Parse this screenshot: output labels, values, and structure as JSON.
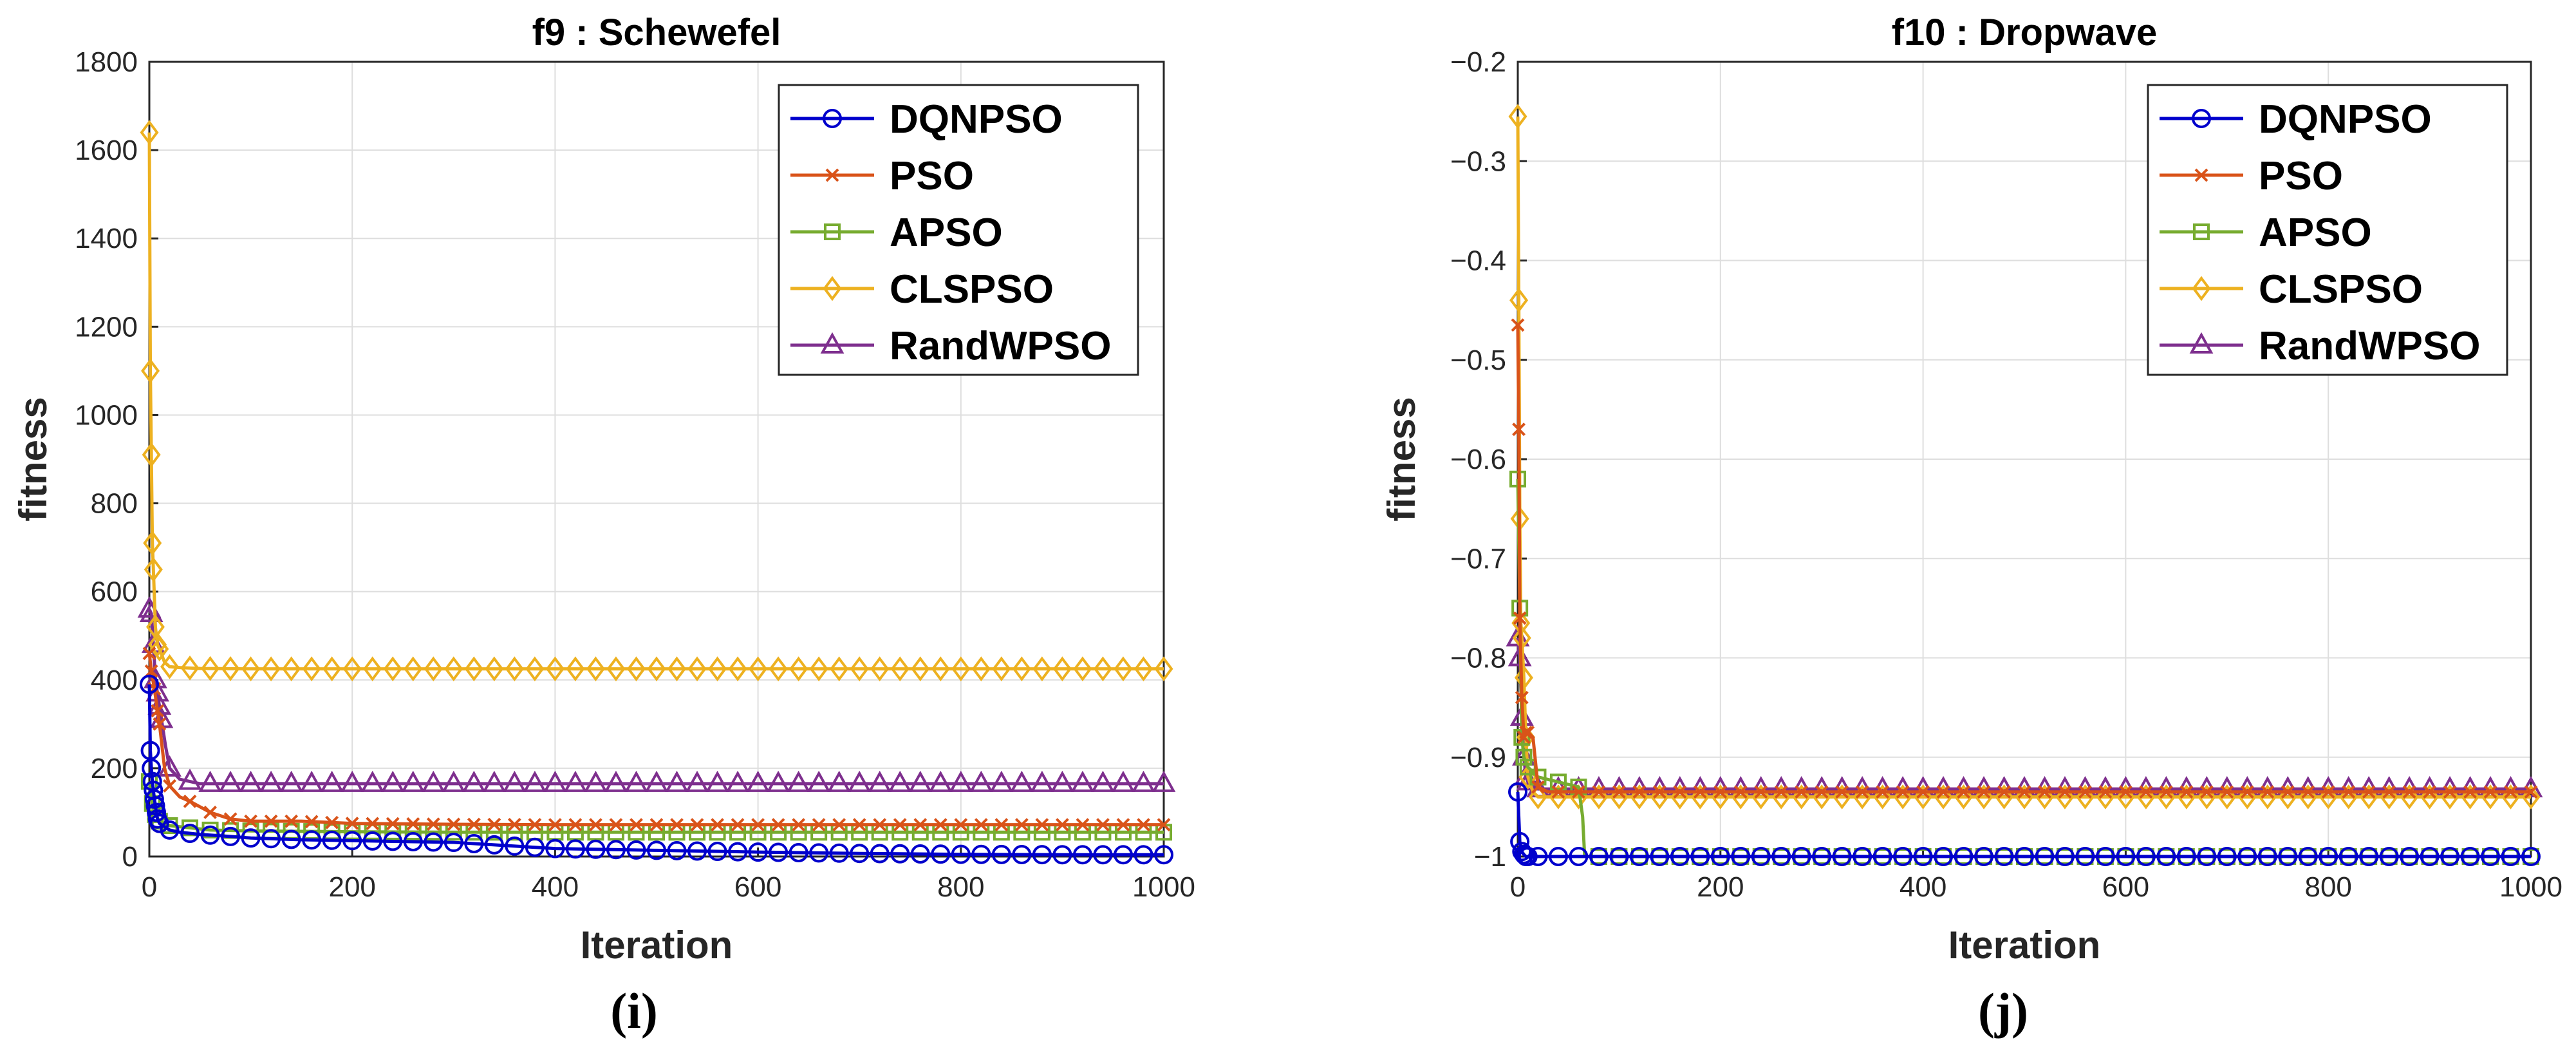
{
  "chart_data": [
    {
      "type": "line",
      "title": "f9 : Schewefel",
      "xlabel": "Iteration",
      "ylabel": "fitness",
      "caption": "(i)",
      "xlim": [
        0,
        1000
      ],
      "ylim": [
        0,
        1800
      ],
      "xticks": [
        0,
        200,
        400,
        600,
        800,
        1000
      ],
      "yticks": [
        0,
        200,
        400,
        600,
        800,
        1000,
        1200,
        1400,
        1600,
        1800
      ],
      "xtick_labels": [
        "0",
        "200",
        "400",
        "600",
        "800",
        "1000"
      ],
      "ytick_labels": [
        "0",
        "200",
        "400",
        "600",
        "800",
        "1000",
        "1200",
        "1400",
        "1600",
        "1800"
      ],
      "grid": true,
      "legend_position": "top-right",
      "series": [
        {
          "name": "DQNPSO",
          "color": "#0000CC",
          "marker": "circle",
          "x": [
            0,
            1,
            2,
            3,
            4,
            5,
            6,
            7,
            8,
            10,
            20,
            30,
            50,
            70,
            100,
            150,
            200,
            250,
            300,
            350,
            400,
            500,
            600,
            700,
            800,
            900,
            1000
          ],
          "y": [
            390,
            240,
            200,
            170,
            150,
            130,
            115,
            100,
            85,
            75,
            60,
            55,
            50,
            47,
            42,
            38,
            36,
            34,
            32,
            25,
            18,
            14,
            10,
            7,
            5,
            4,
            4
          ]
        },
        {
          "name": "PSO",
          "color": "#D95319",
          "marker": "x",
          "x": [
            0,
            2,
            5,
            8,
            10,
            15,
            20,
            30,
            40,
            60,
            80,
            100,
            150,
            200,
            300,
            400,
            500,
            600,
            700,
            800,
            900,
            1000
          ],
          "y": [
            460,
            420,
            380,
            330,
            300,
            200,
            160,
            135,
            125,
            100,
            85,
            80,
            80,
            75,
            73,
            72,
            72,
            72,
            72,
            72,
            72,
            72
          ]
        },
        {
          "name": "APSO",
          "color": "#77AC30",
          "marker": "square",
          "x": [
            0,
            3,
            6,
            10,
            20,
            40,
            60,
            100,
            200,
            300,
            400,
            500,
            600,
            700,
            800,
            900,
            1000
          ],
          "y": [
            170,
            120,
            95,
            80,
            70,
            65,
            60,
            58,
            56,
            55,
            55,
            55,
            55,
            55,
            55,
            55,
            55
          ]
        },
        {
          "name": "CLSPSO",
          "color": "#EDB120",
          "marker": "diamond",
          "x": [
            0,
            1,
            2,
            3,
            4,
            6,
            8,
            10,
            15,
            20,
            30,
            50,
            100,
            200,
            300,
            400,
            500,
            600,
            700,
            800,
            900,
            1000
          ],
          "y": [
            1640,
            1100,
            910,
            710,
            650,
            520,
            480,
            470,
            440,
            430,
            428,
            426,
            425,
            425,
            425,
            425,
            425,
            425,
            425,
            425,
            425,
            425
          ]
        },
        {
          "name": "RandWPSO",
          "color": "#7E2F8E",
          "marker": "triangle",
          "x": [
            0,
            2,
            4,
            6,
            8,
            10,
            12,
            16,
            20,
            30,
            50,
            100,
            200,
            300,
            400,
            500,
            600,
            700,
            800,
            900,
            1000
          ],
          "y": [
            560,
            550,
            480,
            400,
            370,
            340,
            310,
            250,
            200,
            175,
            165,
            165,
            165,
            165,
            165,
            165,
            165,
            165,
            165,
            165,
            165
          ]
        }
      ]
    },
    {
      "type": "line",
      "title": "f10 : Dropwave",
      "xlabel": "Iteration",
      "ylabel": "fitness",
      "caption": "(j)",
      "xlim": [
        0,
        1000
      ],
      "ylim": [
        -1,
        -0.2
      ],
      "xticks": [
        0,
        200,
        400,
        600,
        800,
        1000
      ],
      "yticks": [
        -1,
        -0.9,
        -0.8,
        -0.7,
        -0.6,
        -0.5,
        -0.4,
        -0.3,
        -0.2
      ],
      "xtick_labels": [
        "0",
        "200",
        "400",
        "600",
        "800",
        "1000"
      ],
      "ytick_labels": [
        "−1",
        "−0.9",
        "−0.8",
        "−0.7",
        "−0.6",
        "−0.5",
        "−0.4",
        "−0.3",
        "−0.2"
      ],
      "grid": true,
      "legend_position": "top-right",
      "series": [
        {
          "name": "DQNPSO",
          "color": "#0000CC",
          "marker": "circle",
          "x": [
            0,
            2,
            4,
            6,
            8,
            10,
            20,
            50,
            100,
            200,
            300,
            400,
            500,
            600,
            700,
            800,
            900,
            1000
          ],
          "y": [
            -0.935,
            -0.985,
            -0.995,
            -0.998,
            -1.0,
            -1.0,
            -1.0,
            -1.0,
            -1.0,
            -1.0,
            -1.0,
            -1.0,
            -1.0,
            -1.0,
            -1.0,
            -1.0,
            -1.0,
            -1.0
          ]
        },
        {
          "name": "PSO",
          "color": "#D95319",
          "marker": "x",
          "x": [
            0,
            1,
            2,
            4,
            6,
            8,
            10,
            15,
            20,
            30,
            100,
            300,
            500,
            700,
            1000
          ],
          "y": [
            -0.465,
            -0.57,
            -0.76,
            -0.84,
            -0.88,
            -0.875,
            -0.875,
            -0.88,
            -0.93,
            -0.935,
            -0.935,
            -0.935,
            -0.935,
            -0.935,
            -0.935
          ]
        },
        {
          "name": "APSO",
          "color": "#77AC30",
          "marker": "square",
          "x": [
            0,
            2,
            4,
            6,
            10,
            20,
            40,
            60,
            64,
            66,
            100,
            300,
            500,
            700,
            1000
          ],
          "y": [
            -0.62,
            -0.75,
            -0.88,
            -0.9,
            -0.91,
            -0.92,
            -0.925,
            -0.93,
            -0.96,
            -1.0,
            -1.0,
            -1.0,
            -1.0,
            -1.0,
            -1.0
          ]
        },
        {
          "name": "CLSPSO",
          "color": "#EDB120",
          "marker": "diamond",
          "x": [
            0,
            1,
            2,
            3,
            4,
            6,
            8,
            10,
            15,
            20,
            40,
            100,
            300,
            500,
            700,
            1000
          ],
          "y": [
            -0.255,
            -0.44,
            -0.66,
            -0.765,
            -0.78,
            -0.82,
            -0.88,
            -0.92,
            -0.935,
            -0.94,
            -0.94,
            -0.94,
            -0.94,
            -0.94,
            -0.94,
            -0.94
          ]
        },
        {
          "name": "RandWPSO",
          "color": "#7E2F8E",
          "marker": "triangle",
          "x": [
            0,
            2,
            4,
            6,
            8,
            10,
            15,
            20,
            40,
            100,
            300,
            500,
            700,
            1000
          ],
          "y": [
            -0.78,
            -0.8,
            -0.86,
            -0.9,
            -0.92,
            -0.925,
            -0.93,
            -0.932,
            -0.932,
            -0.932,
            -0.932,
            -0.932,
            -0.932,
            -0.932
          ]
        }
      ]
    }
  ]
}
